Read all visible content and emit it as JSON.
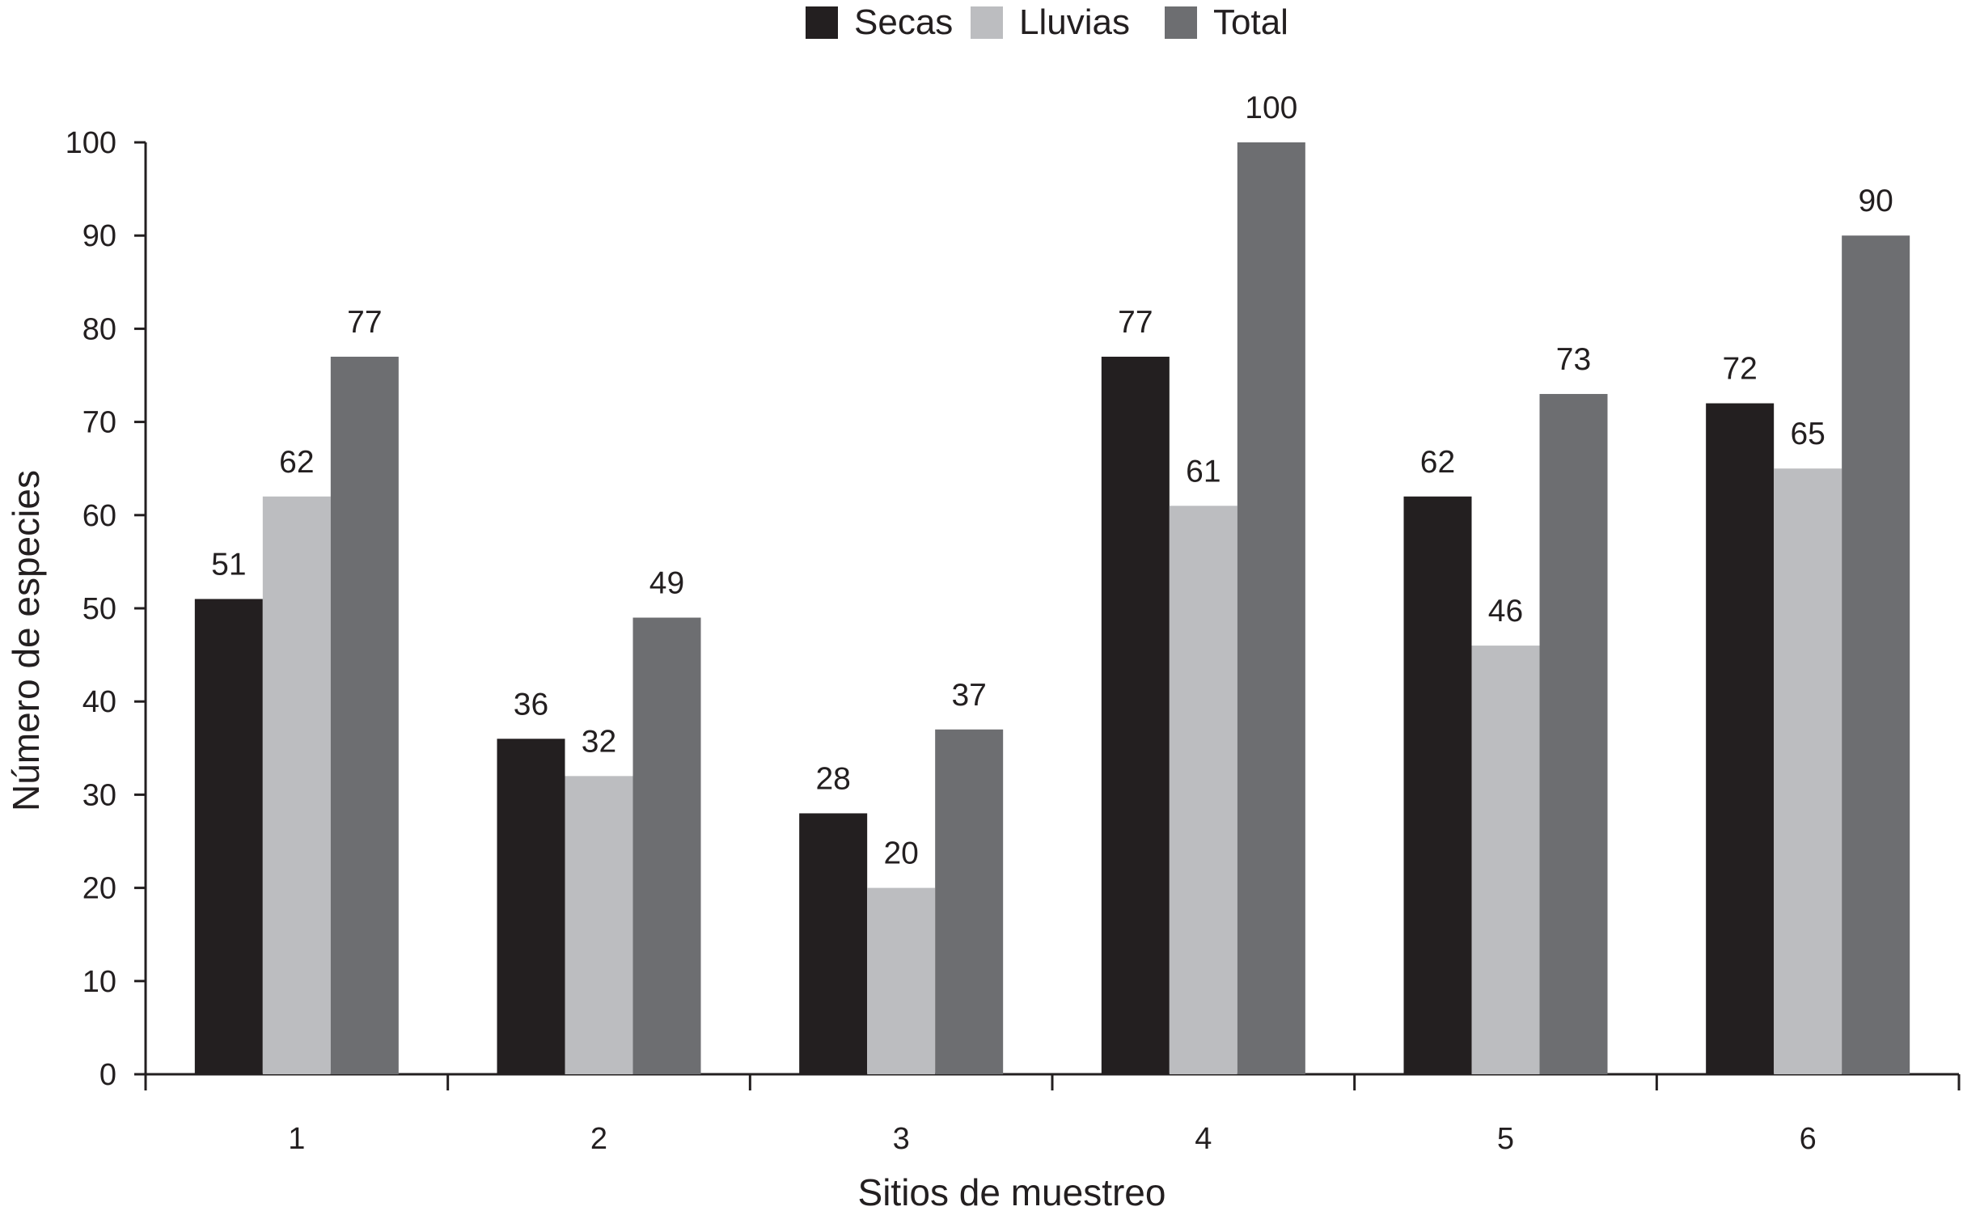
{
  "chart_data": {
    "type": "bar",
    "title": "",
    "xlabel": "Sitios de muestreo",
    "ylabel": "Número de especies",
    "categories": [
      "1",
      "2",
      "3",
      "4",
      "5",
      "6"
    ],
    "series": [
      {
        "name": "Secas",
        "values": [
          51,
          36,
          28,
          77,
          62,
          72
        ],
        "labels": [
          "51",
          "36",
          "28",
          "77",
          "62",
          "72"
        ],
        "color": "#231f20"
      },
      {
        "name": "Lluvias",
        "values": [
          62,
          32,
          20,
          61,
          46,
          65
        ],
        "labels": [
          "62",
          "32",
          "20",
          "61",
          "46",
          "65"
        ],
        "color": "#bcbdc0"
      },
      {
        "name": "Total",
        "values": [
          77,
          49,
          37,
          100,
          73,
          90
        ],
        "labels": [
          "77",
          "49",
          "37",
          "100",
          "73",
          "90"
        ],
        "color": "#6d6e71"
      }
    ],
    "ylim": [
      0,
      100
    ],
    "yticks": [
      "0",
      "10",
      "20",
      "30",
      "40",
      "50",
      "60",
      "70",
      "80",
      "90",
      "100"
    ],
    "grid": false,
    "legend_position": "top-center"
  }
}
